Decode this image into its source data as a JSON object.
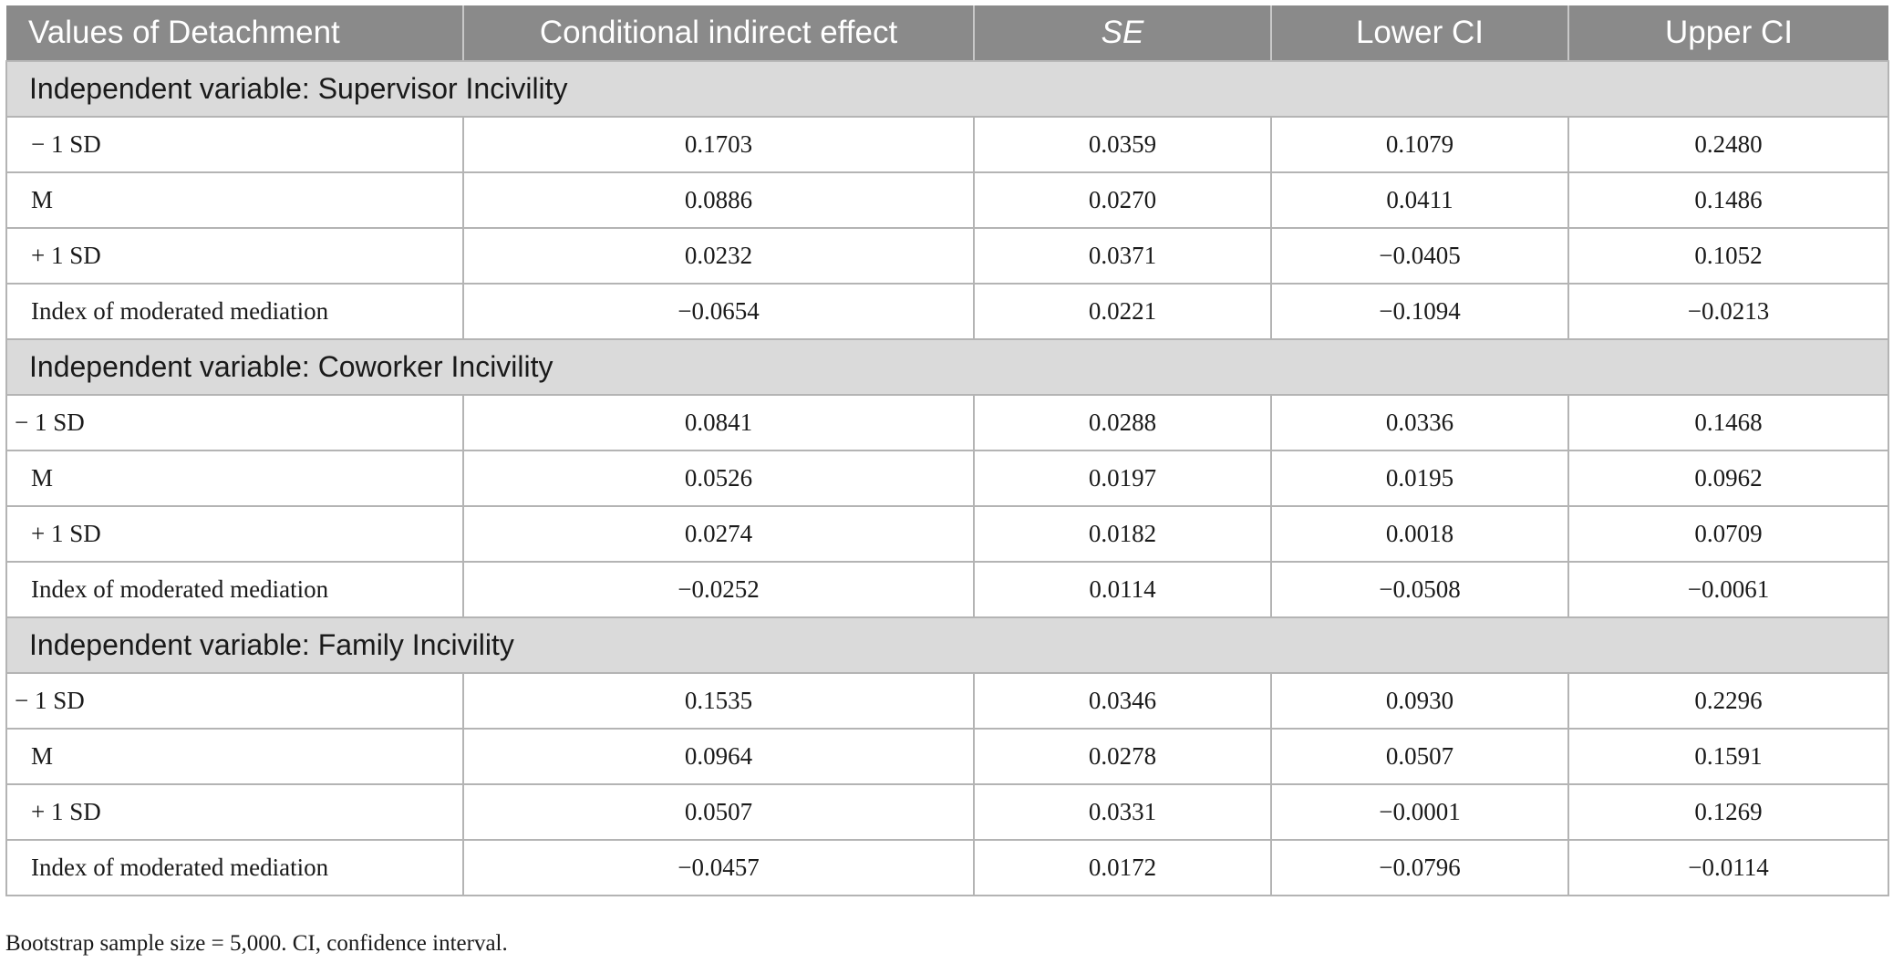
{
  "header": {
    "col0": "Values of Detachment",
    "col1": "Conditional indirect effect",
    "col2": "SE",
    "col3": "Lower CI",
    "col4": "Upper CI"
  },
  "sections": [
    {
      "title": "Independent variable: Supervisor Incivility",
      "rows": [
        [
          "− 1 SD",
          "0.1703",
          "0.0359",
          "0.1079",
          "0.2480"
        ],
        [
          "M",
          "0.0886",
          "0.0270",
          "0.0411",
          "0.1486"
        ],
        [
          "+ 1 SD",
          "0.0232",
          "0.0371",
          "−0.0405",
          "0.1052"
        ],
        [
          "Index of moderated mediation",
          "−0.0654",
          "0.0221",
          "−0.1094",
          "−0.0213"
        ]
      ]
    },
    {
      "title": "Independent variable: Coworker Incivility",
      "rows": [
        [
          "− 1 SD",
          "0.0841",
          "0.0288",
          "0.0336",
          "0.1468"
        ],
        [
          "M",
          "0.0526",
          "0.0197",
          "0.0195",
          "0.0962"
        ],
        [
          "+ 1 SD",
          "0.0274",
          "0.0182",
          "0.0018",
          "0.0709"
        ],
        [
          "Index of moderated mediation",
          "−0.0252",
          "0.0114",
          "−0.0508",
          "−0.0061"
        ]
      ]
    },
    {
      "title": "Independent variable: Family Incivility",
      "rows": [
        [
          "− 1 SD",
          "0.1535",
          "0.0346",
          "0.0930",
          "0.2296"
        ],
        [
          "M",
          "0.0964",
          "0.0278",
          "0.0507",
          "0.1591"
        ],
        [
          "+ 1 SD",
          "0.0507",
          "0.0331",
          "−0.0001",
          "0.1269"
        ],
        [
          "Index of moderated mediation",
          "−0.0457",
          "0.0172",
          "−0.0796",
          "−0.0114"
        ]
      ]
    }
  ],
  "note": "Bootstrap sample size = 5,000. CI, confidence interval."
}
